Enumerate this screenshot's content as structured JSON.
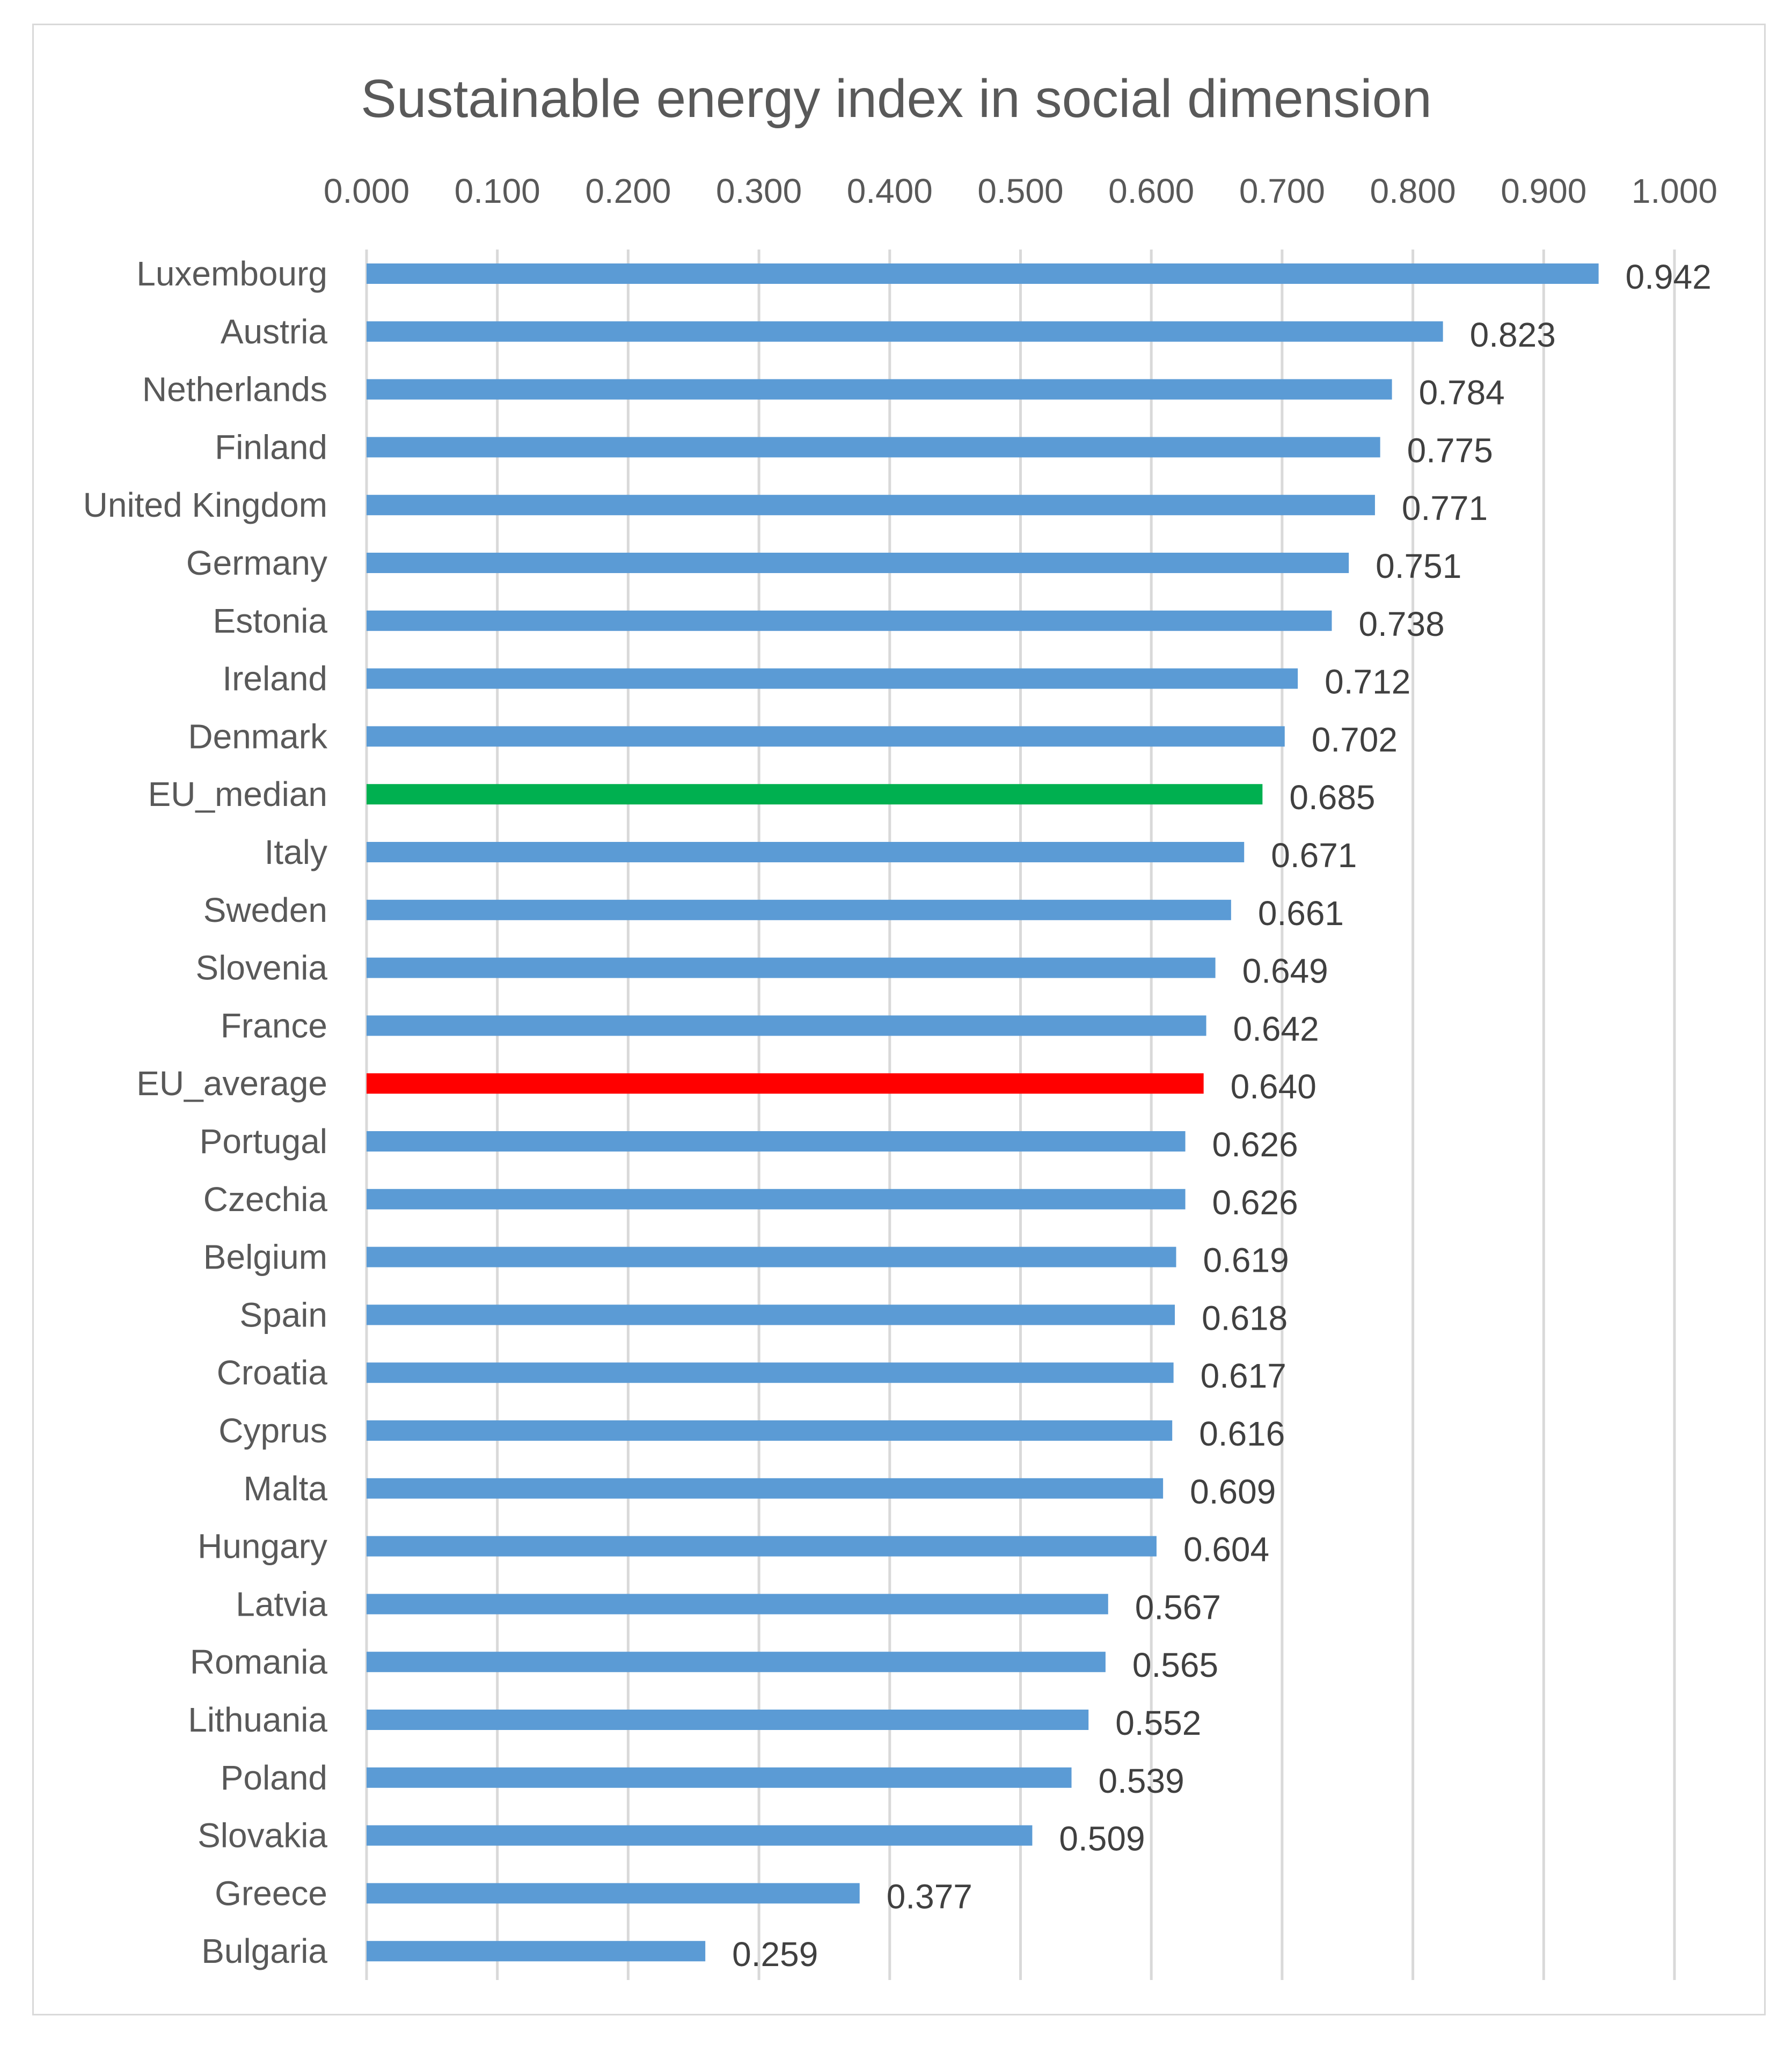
{
  "chart_data": {
    "type": "bar",
    "orientation": "horizontal",
    "title": "Sustainable energy index in social dimension",
    "xlim": [
      0,
      1
    ],
    "xticks": [
      "0.000",
      "0.100",
      "0.200",
      "0.300",
      "0.400",
      "0.500",
      "0.600",
      "0.700",
      "0.800",
      "0.900",
      "1.000"
    ],
    "x_axis_position": "top",
    "grid": true,
    "categories": [
      "Luxembourg",
      "Austria",
      "Netherlands",
      "Finland",
      "United Kingdom",
      "Germany",
      "Estonia",
      "Ireland",
      "Denmark",
      "EU_median",
      "Italy",
      "Sweden",
      "Slovenia",
      "France",
      "EU_average",
      "Portugal",
      "Czechia",
      "Belgium",
      "Spain",
      "Croatia",
      "Cyprus",
      "Malta",
      "Hungary",
      "Latvia",
      "Romania",
      "Lithuania",
      "Poland",
      "Slovakia",
      "Greece",
      "Bulgaria"
    ],
    "values": [
      0.942,
      0.823,
      0.784,
      0.775,
      0.771,
      0.751,
      0.738,
      0.712,
      0.702,
      0.685,
      0.671,
      0.661,
      0.649,
      0.642,
      0.64,
      0.626,
      0.626,
      0.619,
      0.618,
      0.617,
      0.616,
      0.609,
      0.604,
      0.567,
      0.565,
      0.552,
      0.539,
      0.509,
      0.377,
      0.259
    ],
    "value_labels": [
      "0.942",
      "0.823",
      "0.784",
      "0.775",
      "0.771",
      "0.751",
      "0.738",
      "0.712",
      "0.702",
      "0.685",
      "0.671",
      "0.661",
      "0.649",
      "0.642",
      "0.640",
      "0.626",
      "0.626",
      "0.619",
      "0.618",
      "0.617",
      "0.616",
      "0.609",
      "0.604",
      "0.567",
      "0.565",
      "0.552",
      "0.539",
      "0.509",
      "0.377",
      "0.259"
    ],
    "colors": {
      "default": "#5b9bd5",
      "EU_median": "#00b050",
      "EU_average": "#ff0000"
    }
  }
}
